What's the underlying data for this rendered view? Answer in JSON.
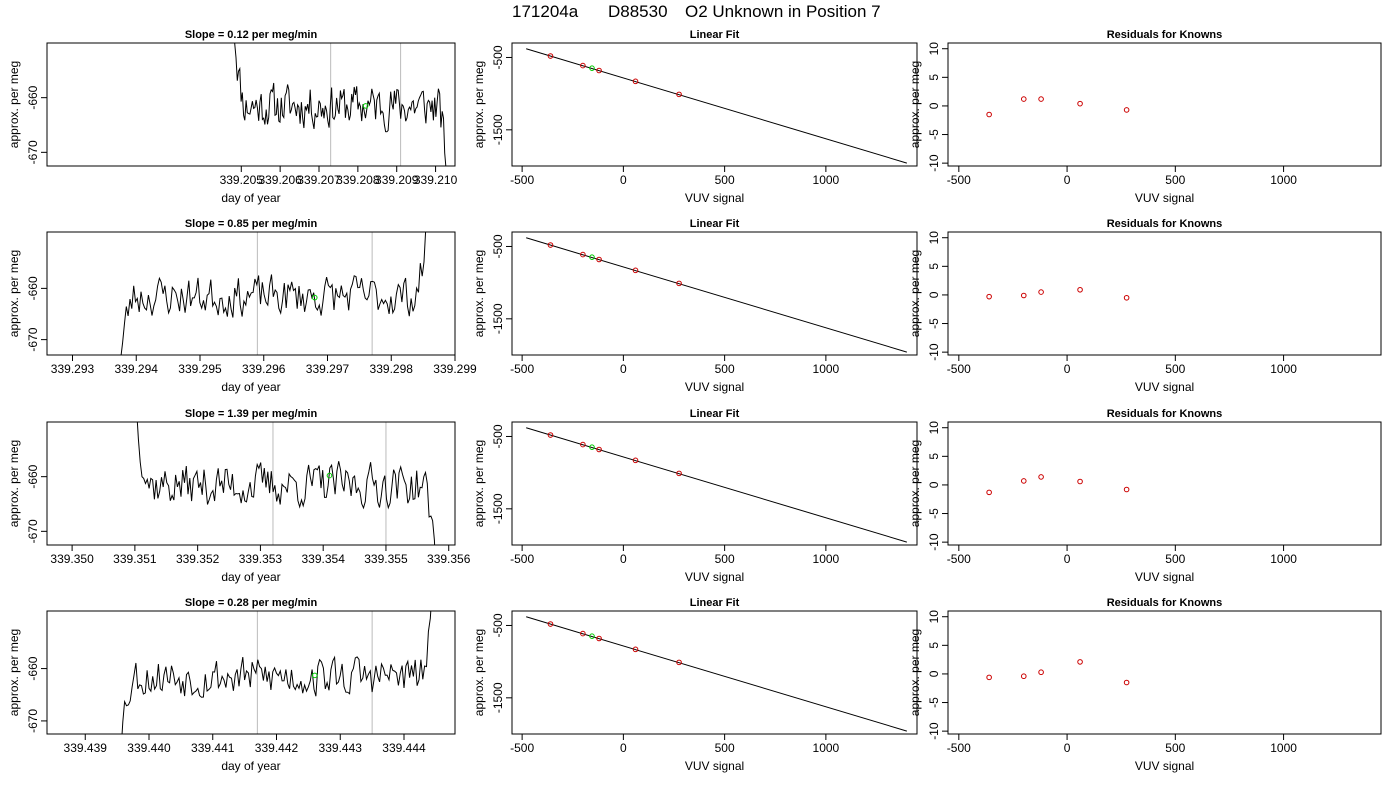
{
  "figure": {
    "title_parts": [
      "171204a",
      "D88530",
      "O2 Unknown in Position  7"
    ]
  },
  "chart_data": [
    {
      "type": "line",
      "title": "Slope =  0.12  per meg/min",
      "xlabel": "day of year",
      "ylabel": "approx. per meg",
      "xlim": [
        339.2,
        339.2105
      ],
      "ylim": [
        -672.5,
        -650
      ],
      "xticks": [
        339.205,
        339.206,
        339.207,
        339.208,
        339.209,
        339.21
      ],
      "xtick_labels": [
        "339.205",
        "339.206",
        "339.207",
        "339.208",
        "339.209",
        "339.210"
      ],
      "yticks": [
        -670,
        -660
      ],
      "ytick_labels": [
        "-670",
        "-660"
      ],
      "vlines": [
        339.2073,
        339.2091
      ],
      "trace_start_x": 339.2048,
      "trace_end_x": 339.2103,
      "trace_mean": -661.5,
      "trace_start_y": -645,
      "trace_end_y": -675,
      "marker": {
        "x": 339.2082,
        "y": -661.5
      },
      "seed": 11
    },
    {
      "type": "scatter",
      "title": "Linear Fit",
      "xlabel": "VUV signal",
      "ylabel": "approx. per meg",
      "xlim": [
        -550,
        1450
      ],
      "ylim": [
        -2000,
        -300
      ],
      "xticks": [
        -500,
        0,
        500,
        1000
      ],
      "xtick_labels": [
        "-500",
        "0",
        "500",
        "1000"
      ],
      "yticks": [
        -1500,
        -500
      ],
      "ytick_labels": [
        "-1500",
        "-500"
      ],
      "fit_line": {
        "x": [
          -480,
          1400
        ],
        "y": [
          -380,
          -1960
        ]
      },
      "points": {
        "x": [
          -360,
          -200,
          -120,
          60,
          275
        ],
        "y": [
          -480,
          -612,
          -680,
          -830,
          -1010
        ]
      },
      "marker": {
        "x": -155,
        "y": -648
      }
    },
    {
      "type": "scatter",
      "title": "Residuals for Knowns",
      "xlabel": "VUV signal",
      "ylabel": "approx. per meg",
      "xlim": [
        -550,
        1450
      ],
      "ylim": [
        -10.5,
        11
      ],
      "xticks": [
        -500,
        0,
        500,
        1000
      ],
      "xtick_labels": [
        "-500",
        "0",
        "500",
        "1000"
      ],
      "yticks": [
        -10,
        -5,
        0,
        5,
        10
      ],
      "ytick_labels": [
        "-10",
        "-5",
        "0",
        "5",
        "10"
      ],
      "points": {
        "x": [
          -360,
          -200,
          -120,
          60,
          275
        ],
        "y": [
          -1.5,
          1.2,
          1.2,
          0.4,
          -0.7
        ]
      }
    },
    {
      "type": "line",
      "title": "Slope =  0.85  per meg/min",
      "xlabel": "day of year",
      "ylabel": "approx. per meg",
      "xlim": [
        339.2926,
        339.299
      ],
      "ylim": [
        -673,
        -649
      ],
      "xticks": [
        339.293,
        339.294,
        339.295,
        339.296,
        339.297,
        339.298,
        339.299
      ],
      "xtick_labels": [
        "339.293",
        "339.294",
        "339.295",
        "339.296",
        "339.297",
        "339.298",
        "339.299"
      ],
      "yticks": [
        -670,
        -660
      ],
      "ytick_labels": [
        "-670",
        "-660"
      ],
      "vlines": [
        339.2959,
        339.2977
      ],
      "trace_start_x": 339.2937,
      "trace_end_x": 339.2986,
      "trace_mean": -661.5,
      "trace_start_y": -680,
      "trace_end_y": -642,
      "marker": {
        "x": 339.2968,
        "y": -661.8
      },
      "seed": 23
    },
    {
      "type": "scatter",
      "title": "Linear Fit",
      "xlabel": "VUV signal",
      "ylabel": "approx. per meg",
      "xlim": [
        -550,
        1450
      ],
      "ylim": [
        -2000,
        -300
      ],
      "xticks": [
        -500,
        0,
        500,
        1000
      ],
      "xtick_labels": [
        "-500",
        "0",
        "500",
        "1000"
      ],
      "yticks": [
        -1500,
        -500
      ],
      "ytick_labels": [
        "-1500",
        "-500"
      ],
      "fit_line": {
        "x": [
          -480,
          1400
        ],
        "y": [
          -380,
          -1960
        ]
      },
      "points": {
        "x": [
          -360,
          -200,
          -120,
          60,
          275
        ],
        "y": [
          -480,
          -612,
          -680,
          -830,
          -1010
        ]
      },
      "marker": {
        "x": -155,
        "y": -648
      }
    },
    {
      "type": "scatter",
      "title": "Residuals for Knowns",
      "xlabel": "VUV signal",
      "ylabel": "approx. per meg",
      "xlim": [
        -550,
        1450
      ],
      "ylim": [
        -10.5,
        11
      ],
      "xticks": [
        -500,
        0,
        500,
        1000
      ],
      "xtick_labels": [
        "-500",
        "0",
        "500",
        "1000"
      ],
      "yticks": [
        -10,
        -5,
        0,
        5,
        10
      ],
      "ytick_labels": [
        "-10",
        "-5",
        "0",
        "5",
        "10"
      ],
      "points": {
        "x": [
          -360,
          -200,
          -120,
          60,
          275
        ],
        "y": [
          -0.3,
          -0.1,
          0.5,
          0.9,
          -0.5
        ]
      }
    },
    {
      "type": "line",
      "title": "Slope =  1.39  per meg/min",
      "xlabel": "day of year",
      "ylabel": "approx. per meg",
      "xlim": [
        339.3496,
        339.3561
      ],
      "ylim": [
        -672.5,
        -650
      ],
      "xticks": [
        339.35,
        339.351,
        339.352,
        339.353,
        339.354,
        339.355,
        339.356
      ],
      "xtick_labels": [
        "339.350",
        "339.351",
        "339.352",
        "339.353",
        "339.354",
        "339.355",
        "339.356"
      ],
      "yticks": [
        -670,
        -660
      ],
      "ytick_labels": [
        "-670",
        "-660"
      ],
      "vlines": [
        339.3532,
        339.355
      ],
      "trace_start_x": 339.351,
      "trace_end_x": 339.3558,
      "trace_mean": -661.5,
      "trace_start_y": -645,
      "trace_end_y": -676,
      "marker": {
        "x": 339.3541,
        "y": -659.8
      },
      "seed": 37
    },
    {
      "type": "scatter",
      "title": "Linear Fit",
      "xlabel": "VUV signal",
      "ylabel": "approx. per meg",
      "xlim": [
        -550,
        1450
      ],
      "ylim": [
        -2000,
        -300
      ],
      "xticks": [
        -500,
        0,
        500,
        1000
      ],
      "xtick_labels": [
        "-500",
        "0",
        "500",
        "1000"
      ],
      "yticks": [
        -1500,
        -500
      ],
      "ytick_labels": [
        "-1500",
        "-500"
      ],
      "fit_line": {
        "x": [
          -480,
          1400
        ],
        "y": [
          -380,
          -1960
        ]
      },
      "points": {
        "x": [
          -360,
          -200,
          -120,
          60,
          275
        ],
        "y": [
          -480,
          -612,
          -680,
          -830,
          -1010
        ]
      },
      "marker": {
        "x": -155,
        "y": -648
      }
    },
    {
      "type": "scatter",
      "title": "Residuals for Knowns",
      "xlabel": "VUV signal",
      "ylabel": "approx. per meg",
      "xlim": [
        -550,
        1450
      ],
      "ylim": [
        -10.5,
        11
      ],
      "xticks": [
        -500,
        0,
        500,
        1000
      ],
      "xtick_labels": [
        "-500",
        "0",
        "500",
        "1000"
      ],
      "yticks": [
        -10,
        -5,
        0,
        5,
        10
      ],
      "ytick_labels": [
        "-10",
        "-5",
        "0",
        "5",
        "10"
      ],
      "points": {
        "x": [
          -360,
          -200,
          -120,
          60,
          275
        ],
        "y": [
          -1.3,
          0.7,
          1.4,
          0.6,
          -0.8
        ]
      }
    },
    {
      "type": "line",
      "title": "Slope =  0.28  per meg/min",
      "xlabel": "day of year",
      "ylabel": "approx. per meg",
      "xlim": [
        339.4384,
        339.4448
      ],
      "ylim": [
        -672.5,
        -649
      ],
      "xticks": [
        339.439,
        339.44,
        339.441,
        339.442,
        339.443,
        339.444
      ],
      "xtick_labels": [
        "339.439",
        "339.440",
        "339.441",
        "339.442",
        "339.443",
        "339.444"
      ],
      "yticks": [
        -670,
        -660
      ],
      "ytick_labels": [
        "-670",
        "-660"
      ],
      "vlines": [
        339.4417,
        339.4435
      ],
      "trace_start_x": 339.4395,
      "trace_end_x": 339.4445,
      "trace_mean": -661.5,
      "trace_start_y": -678,
      "trace_end_y": -640,
      "marker": {
        "x": 339.4426,
        "y": -661.3
      },
      "seed": 53
    },
    {
      "type": "scatter",
      "title": "Linear Fit",
      "xlabel": "VUV signal",
      "ylabel": "approx. per meg",
      "xlim": [
        -550,
        1450
      ],
      "ylim": [
        -2000,
        -300
      ],
      "xticks": [
        -500,
        0,
        500,
        1000
      ],
      "xtick_labels": [
        "-500",
        "0",
        "500",
        "1000"
      ],
      "yticks": [
        -1500,
        -500
      ],
      "ytick_labels": [
        "-1500",
        "-500"
      ],
      "fit_line": {
        "x": [
          -480,
          1400
        ],
        "y": [
          -380,
          -1960
        ]
      },
      "points": {
        "x": [
          -360,
          -200,
          -120,
          60,
          275
        ],
        "y": [
          -480,
          -612,
          -680,
          -830,
          -1010
        ]
      },
      "marker": {
        "x": -155,
        "y": -648
      }
    },
    {
      "type": "scatter",
      "title": "Residuals for Knowns",
      "xlabel": "VUV signal",
      "ylabel": "approx. per meg",
      "xlim": [
        -550,
        1450
      ],
      "ylim": [
        -10.5,
        11
      ],
      "xticks": [
        -500,
        0,
        500,
        1000
      ],
      "xtick_labels": [
        "-500",
        "0",
        "500",
        "1000"
      ],
      "yticks": [
        -10,
        -5,
        0,
        5,
        10
      ],
      "ytick_labels": [
        "-10",
        "-5",
        "0",
        "5",
        "10"
      ],
      "points": {
        "x": [
          -360,
          -200,
          -120,
          60,
          275
        ],
        "y": [
          -0.6,
          -0.4,
          0.3,
          2.1,
          -1.5
        ]
      }
    }
  ],
  "colors": {
    "trace": "#000000",
    "fit_line": "#000000",
    "known_points": "#cc0000",
    "unknown_marker": "#00cc00",
    "vline": "#bbbbbb",
    "frame": "#000000"
  }
}
